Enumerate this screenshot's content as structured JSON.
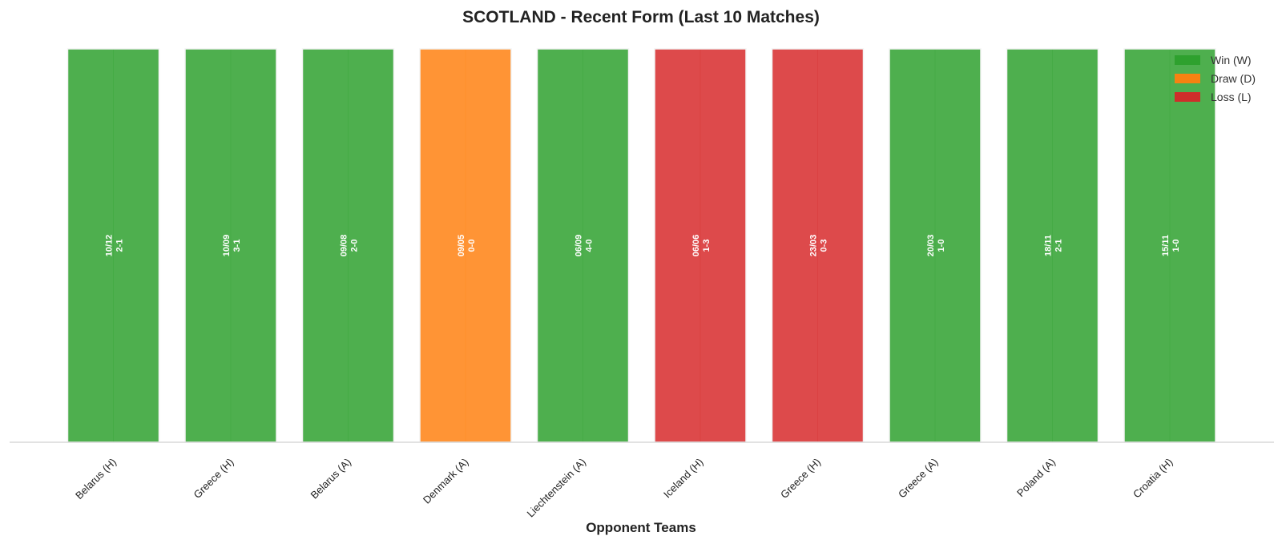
{
  "chart_data": {
    "type": "bar",
    "title": "SCOTLAND - Recent Form (Last 10 Matches)",
    "xlabel": "Opponent Teams",
    "ylabel": "",
    "ylim": [
      0,
      1
    ],
    "grid": false,
    "legend_position": "top-right",
    "categories": [
      "Belarus (H)",
      "Greece (H)",
      "Belarus (A)",
      "Denmark (A)",
      "Liechtenstein (A)",
      "Iceland (H)",
      "Greece (H)",
      "Greece (A)",
      "Poland (A)",
      "Croatia (H)"
    ],
    "values": [
      1,
      1,
      1,
      1,
      1,
      1,
      1,
      1,
      1,
      1
    ],
    "results": [
      "W",
      "W",
      "W",
      "D",
      "W",
      "L",
      "L",
      "W",
      "W",
      "W"
    ],
    "dates": [
      "10/12",
      "10/09",
      "09/08",
      "09/05",
      "06/09",
      "06/06",
      "23/03",
      "20/03",
      "18/11",
      "15/11"
    ],
    "scores": [
      "2-1",
      "3-1",
      "2-0",
      "0-0",
      "4-0",
      "1-3",
      "0-3",
      "1-0",
      "2-1",
      "1-0"
    ],
    "legend": [
      {
        "key": "W",
        "label": "Win (W)",
        "color": "#2ca02c"
      },
      {
        "key": "D",
        "label": "Draw (D)",
        "color": "#ff7f0e"
      },
      {
        "key": "L",
        "label": "Loss (L)",
        "color": "#d62728"
      }
    ],
    "colors": {
      "W": "#2ca02c",
      "D": "#ff7f0e",
      "L": "#d62728"
    }
  }
}
